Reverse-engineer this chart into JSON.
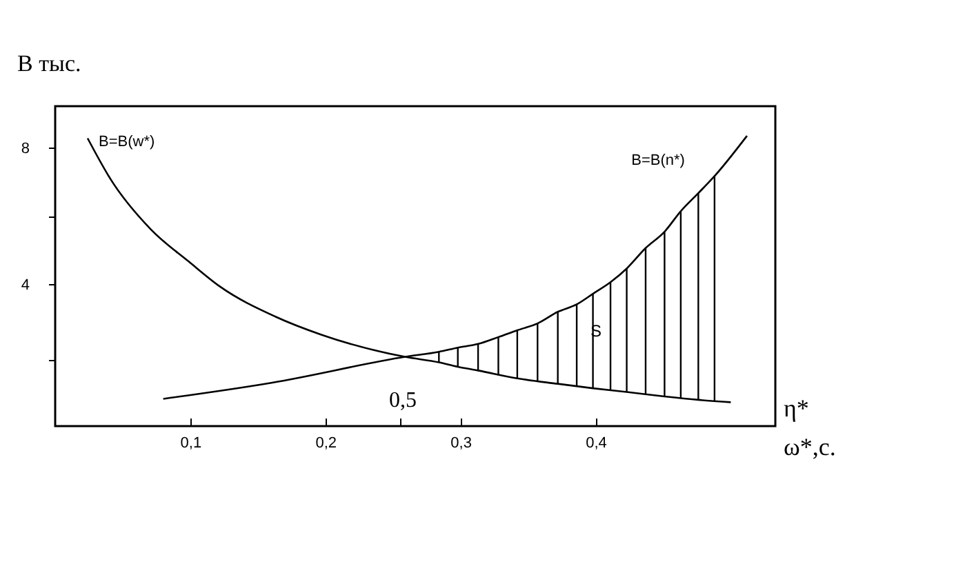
{
  "chart_data": {
    "type": "line",
    "ylabel": "В тыс.",
    "xlabel": "ω*,с.",
    "annotations": [
      "η*",
      "0,5",
      "S"
    ],
    "xlim": [
      0,
      0.533
    ],
    "ylim": [
      -0.15,
      9.23
    ],
    "xticks": [
      {
        "value": 0.1,
        "label": "0,1"
      },
      {
        "value": 0.2,
        "label": "0,2"
      },
      {
        "value": 0.255,
        "label": null
      },
      {
        "value": 0.3,
        "label": "0,3"
      },
      {
        "value": 0.4,
        "label": "0,4"
      }
    ],
    "yticks": [
      {
        "value": 1.8,
        "label": null
      },
      4,
      {
        "value": 6,
        "label": null
      },
      8
    ],
    "marker": "none",
    "line_style": "solid",
    "series": [
      {
        "name": "B=B(w*)",
        "color": "#000000",
        "x": [
          0.024,
          0.041,
          0.071,
          0.099,
          0.122,
          0.163,
          0.197,
          0.259,
          0.284,
          0.298,
          0.313,
          0.342,
          0.372,
          0.398,
          0.423,
          0.451,
          0.476,
          0.5
        ],
        "values": [
          8.29,
          7.09,
          5.61,
          4.67,
          3.94,
          3.06,
          2.53,
          1.88,
          1.72,
          1.59,
          1.48,
          1.25,
          1.09,
          0.96,
          0.85,
          0.72,
          0.62,
          0.55
        ]
      },
      {
        "name": "B=B(n*)",
        "color": "#000000",
        "x": [
          0.08,
          0.16,
          0.259,
          0.284,
          0.298,
          0.313,
          0.328,
          0.342,
          0.357,
          0.372,
          0.386,
          0.398,
          0.411,
          0.423,
          0.437,
          0.451,
          0.463,
          0.476,
          0.488,
          0.512
        ],
        "values": [
          0.65,
          1.12,
          1.88,
          2.03,
          2.15,
          2.26,
          2.46,
          2.66,
          2.86,
          3.2,
          3.42,
          3.73,
          4.07,
          4.47,
          5.07,
          5.55,
          6.15,
          6.68,
          7.18,
          8.36
        ]
      },
      {
        "type": "bar",
        "color": "#000000",
        "x": [
          0.284,
          0.298,
          0.313,
          0.328,
          0.342,
          0.357,
          0.372,
          0.386,
          0.398,
          0.411,
          0.423,
          0.437,
          0.451,
          0.463,
          0.476,
          0.488
        ],
        "base": [
          1.72,
          1.59,
          1.48,
          1.34,
          1.25,
          1.18,
          1.09,
          1.01,
          0.96,
          0.89,
          0.85,
          0.78,
          0.72,
          0.68,
          0.62,
          0.6
        ],
        "values": [
          0.31,
          0.56,
          0.78,
          1.12,
          1.41,
          1.68,
          2.11,
          2.41,
          2.77,
          3.18,
          3.62,
          4.29,
          4.83,
          5.47,
          6.06,
          6.58
        ]
      }
    ]
  }
}
